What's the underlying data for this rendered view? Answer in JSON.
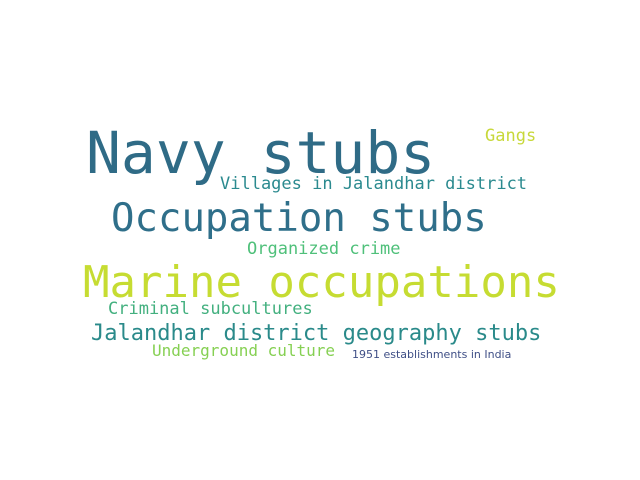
{
  "word_cloud": {
    "words": [
      {
        "text": "Navy stubs",
        "color": "#2f6b86"
      },
      {
        "text": "Occupation stubs",
        "color": "#2f6f8a"
      },
      {
        "text": "Marine occupations",
        "color": "#c6dc32"
      },
      {
        "text": "Jalandhar district geography stubs",
        "color": "#2a8a8a"
      },
      {
        "text": "Villages in Jalandhar district",
        "color": "#2b8a8f"
      },
      {
        "text": "Organized crime",
        "color": "#4fc07a"
      },
      {
        "text": "Criminal subcultures",
        "color": "#43b07f"
      },
      {
        "text": "Underground culture",
        "color": "#86d053"
      },
      {
        "text": "Gangs",
        "color": "#c8d83a"
      },
      {
        "text": "1951 establishments in India",
        "color": "#3f4f86"
      }
    ]
  }
}
